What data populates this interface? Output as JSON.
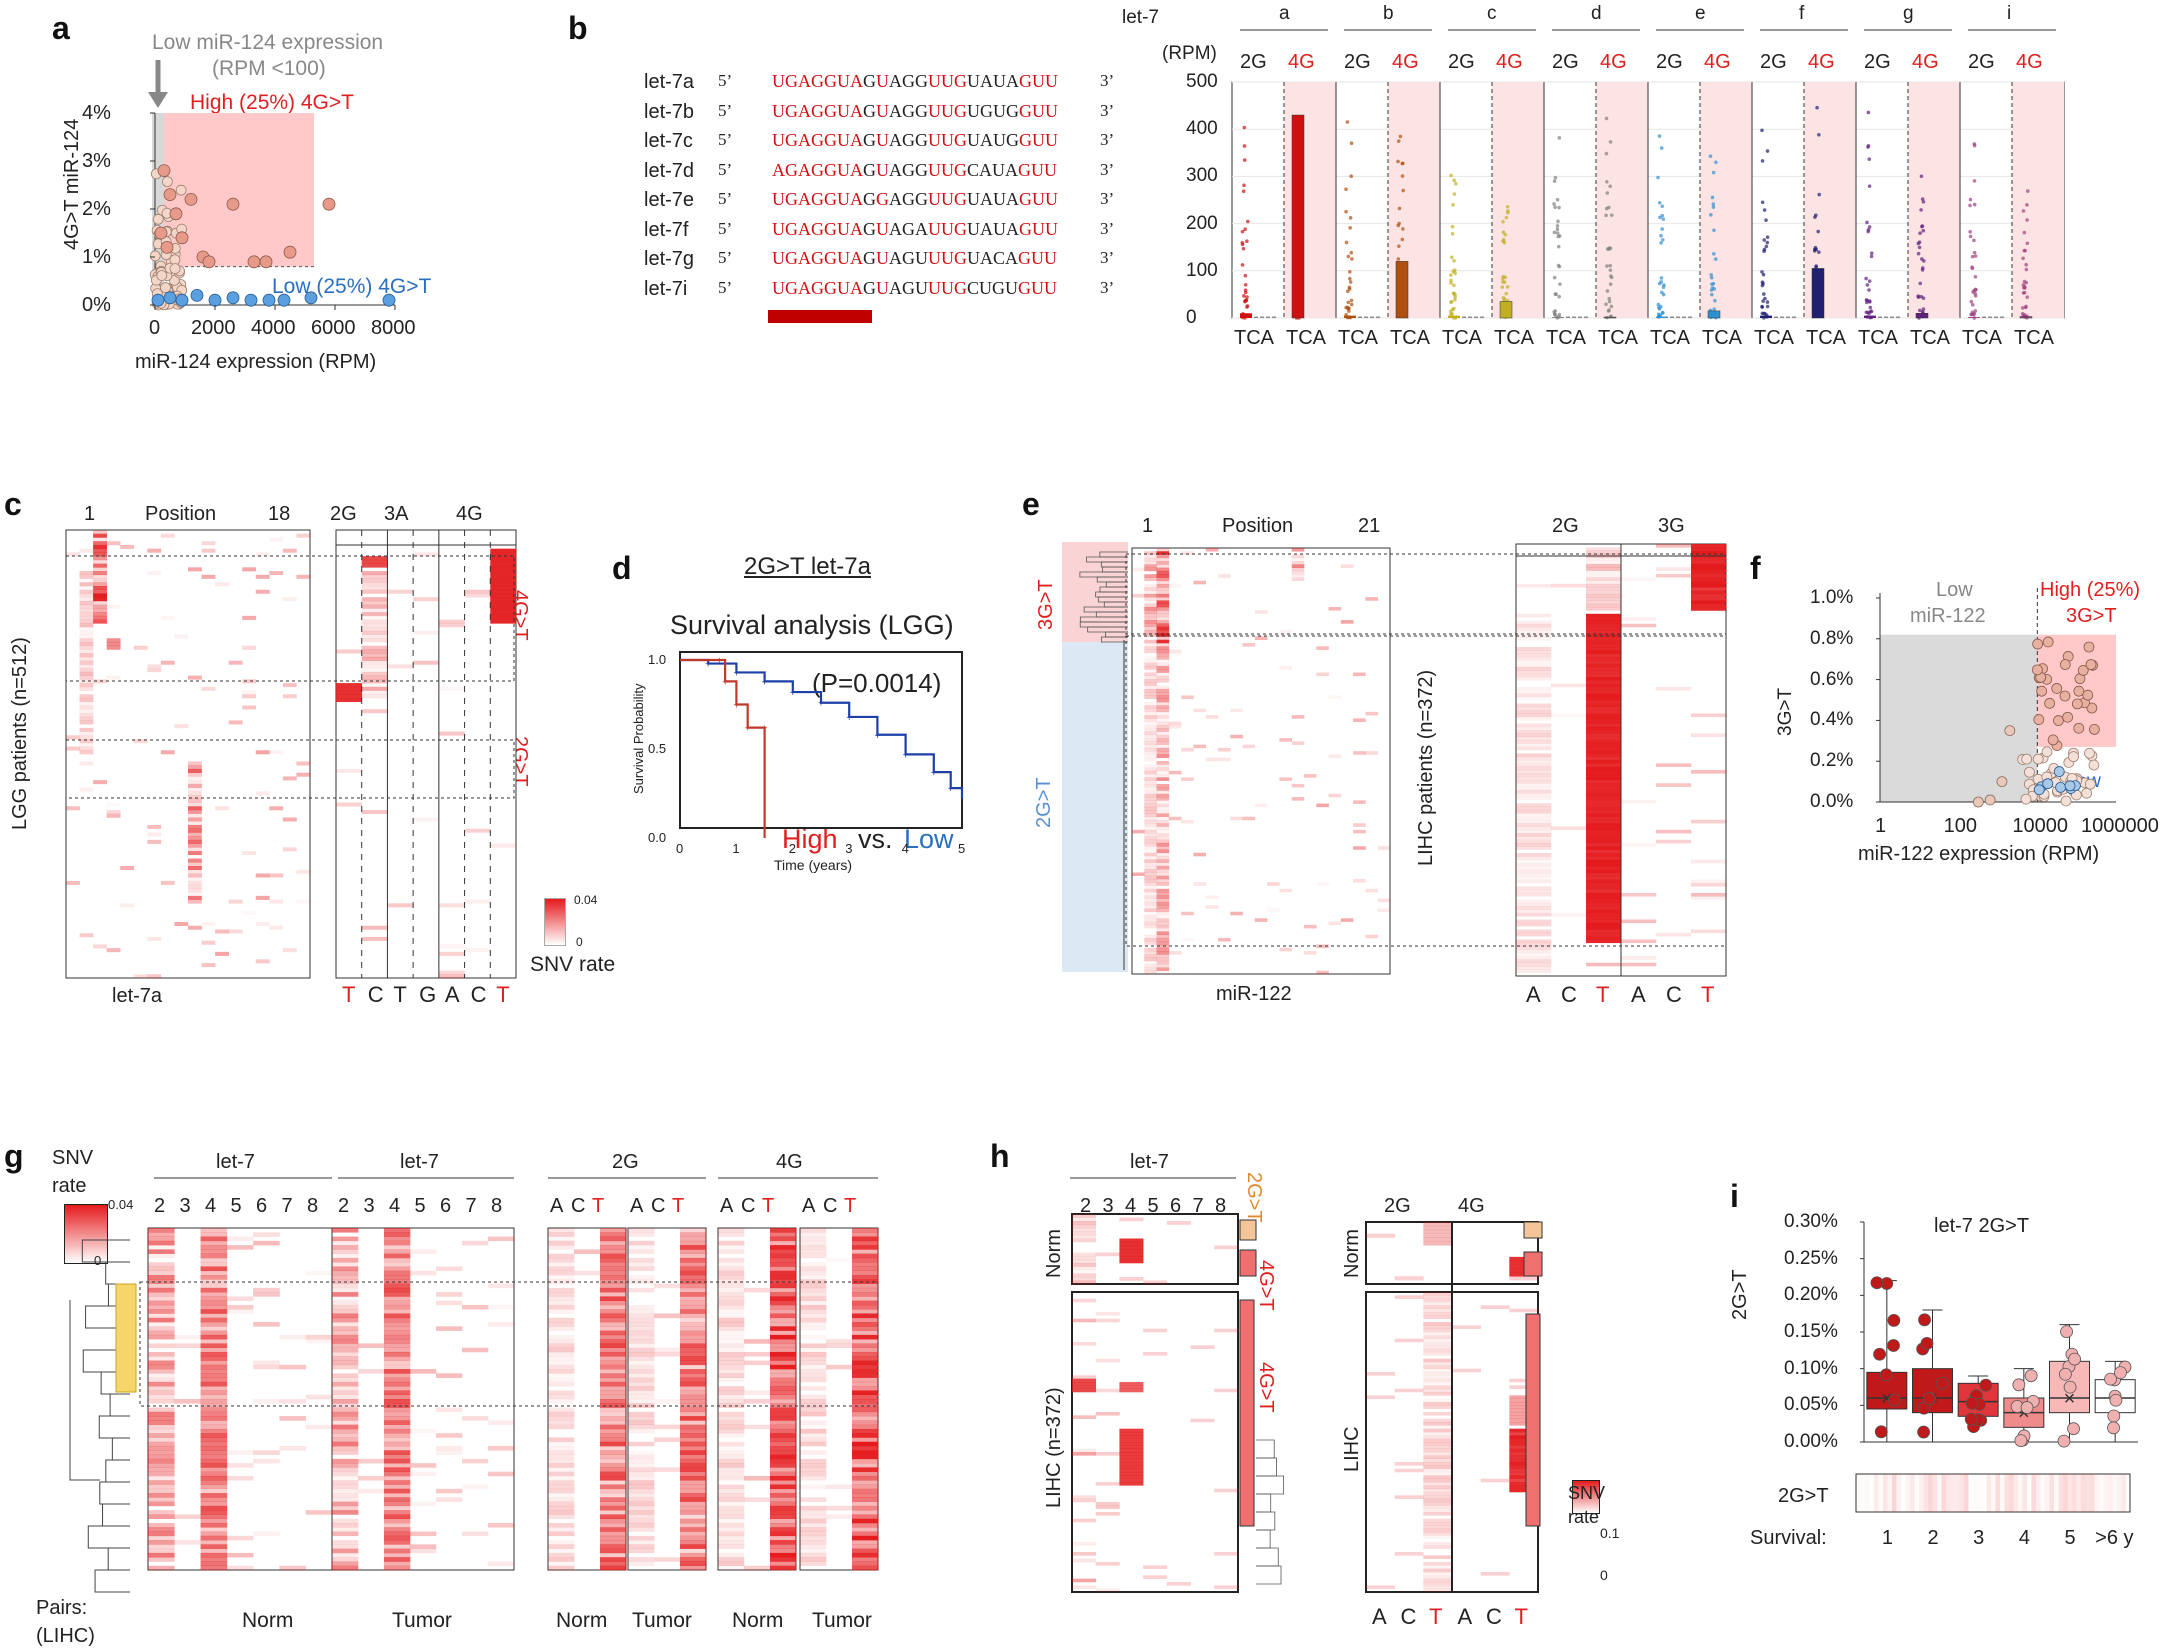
{
  "panel_labels": {
    "a": "a",
    "b": "b",
    "c": "c",
    "d": "d",
    "e": "e",
    "f": "f",
    "g": "g",
    "h": "h",
    "i": "i"
  },
  "colors": {
    "high": "#e02020",
    "low": "#2a6fc0",
    "pink": "#ffc9c9",
    "heat_max": "#e41a1c",
    "gray_region": "#dadada"
  },
  "panel_a": {
    "annotation_low": "Low miR-124 expression",
    "annotation_low_2": "(RPM <100)",
    "annotation_high": "High (25%) 4G>T",
    "annotation_lowgroup": "Low (25%) 4G>T",
    "ylabel": "4G>T miR-124",
    "xlabel": "miR-124 expression (RPM)",
    "yticks": [
      "4%",
      "3%",
      "2%",
      "1%",
      "0%"
    ],
    "xticks": [
      "0",
      "2000",
      "4000",
      "6000",
      "8000"
    ]
  },
  "panel_b": {
    "rows": [
      {
        "name": "let-7a",
        "seq": "UGAGGUAGUAGGUUGUAUAGUU"
      },
      {
        "name": "let-7b",
        "seq": "UGAGGUAGUAGGUUGUGUGGUU"
      },
      {
        "name": "let-7c",
        "seq": "UGAGGUAGUAGGUUGUAUGGUU"
      },
      {
        "name": "let-7d",
        "seq": "AGAGGUAGUAGGUUGCAUAGUU"
      },
      {
        "name": "let-7e",
        "seq": "UGAGGUAGGAGGUUGUAUAGUU"
      },
      {
        "name": "let-7f",
        "seq": "UGAGGUAGUAGAUUGUAUAGUU"
      },
      {
        "name": "let-7g",
        "seq": "UGAGGUAGUAGUUUGUACAGUU"
      },
      {
        "name": "let-7i",
        "seq": "UGAGGUAGUAGUUUGCUGUGUU"
      }
    ],
    "five": "5’",
    "three": "3’",
    "box_title": "let-7",
    "box_unit": "(RPM)",
    "groups": [
      "a",
      "b",
      "c",
      "d",
      "e",
      "f",
      "g",
      "i"
    ],
    "sub": [
      "2G",
      "4G"
    ],
    "tca": "TCA",
    "yticks": [
      "500",
      "400",
      "300",
      "200",
      "100",
      "0"
    ]
  },
  "panel_c": {
    "pos_start": "1",
    "pos_label": "Position",
    "pos_end": "18",
    "cols": [
      "2G",
      "3A",
      "4G"
    ],
    "ylabel": "LGG patients (n=512)",
    "xlabel": "let-7a",
    "bottom_letters": [
      "T",
      "C",
      "T",
      "G",
      "A",
      "C",
      "T"
    ],
    "tag_4g": "4G>T",
    "tag_2g": "2G>T",
    "legend_max": "0.04",
    "legend_min": "0",
    "legend_title": "SNV rate"
  },
  "panel_d": {
    "title": "2G>T let-7a",
    "subtitle": "Survival analysis (LGG)",
    "pvalue": "(P=0.0014)",
    "ylabel": "Survival Probability",
    "xlabel": "Time (years)",
    "high": "High",
    "vs": "vs.",
    "low": "Low",
    "yticks": [
      "1.0",
      "0.5",
      "0.0"
    ],
    "xticks": [
      "0",
      "1",
      "2",
      "3",
      "4",
      "5"
    ]
  },
  "panel_e": {
    "pos_start": "1",
    "pos_label": "Position",
    "pos_end": "21",
    "cols": [
      "2G",
      "3G"
    ],
    "tag_3g": "3G>T",
    "tag_2g": "2G>T",
    "ylabel": "LIHC patients (n=372)",
    "xlabel": "miR-122",
    "bottom_letters": [
      "A",
      "C",
      "T",
      "A",
      "C",
      "T"
    ]
  },
  "panel_f": {
    "ylabel": "3G>T",
    "xlabel": "miR-122 expression (RPM)",
    "yticks": [
      "1.0%",
      "0.8%",
      "0.6%",
      "0.4%",
      "0.2%",
      "0.0%"
    ],
    "xticks": [
      "1",
      "100",
      "10000",
      "1000000"
    ],
    "low_label": "Low",
    "low_label2": "miR-122",
    "high_label": "High (25%)",
    "high_label2": "3G>T",
    "low_tag": "Low"
  },
  "panel_g": {
    "legend_title": "SNV",
    "legend_title2": "rate",
    "legend_max": "0.04",
    "legend_min": "0",
    "let7": "let-7",
    "cols": [
      "2G",
      "4G"
    ],
    "positions": [
      "2",
      "3",
      "4",
      "5",
      "6",
      "7",
      "8"
    ],
    "acgt": [
      "A",
      "C",
      "T"
    ],
    "bottom": [
      "Norm",
      "Tumor",
      "Norm",
      "Tumor",
      "Norm",
      "Tumor"
    ],
    "pairs": "Pairs:",
    "pairs2": "(LIHC)"
  },
  "panel_h": {
    "let7": "let-7",
    "positions": [
      "2",
      "3",
      "4",
      "5",
      "6",
      "7",
      "8"
    ],
    "cols": [
      "2G",
      "4G"
    ],
    "tag_2g": "2G>T",
    "tag_4g": "4G>T",
    "tag_4g2": "4G>T",
    "norm": "Norm",
    "lihc": "LIHC (n=372)",
    "lihc2": "LIHC",
    "bottom_letters": [
      "A",
      "C",
      "T",
      "A",
      "C",
      "T"
    ],
    "legend_title": "SNV",
    "legend_title2": "rate",
    "legend_max": "0.1",
    "legend_min": "0"
  },
  "panel_i": {
    "title": "let-7 2G>T",
    "ylabel": "2G>T",
    "strip_label": "2G>T",
    "survival_label": "Survival:",
    "yticks": [
      "0.30%",
      "0.25%",
      "0.20%",
      "0.15%",
      "0.10%",
      "0.05%",
      "0.00%"
    ],
    "categories": [
      "1",
      "2",
      "3",
      "4",
      "5",
      ">6 y"
    ]
  },
  "chart_data": [
    {
      "type": "scatter",
      "panel": "a",
      "title": "",
      "xlabel": "miR-124 expression (RPM)",
      "ylabel": "4G>T miR-124",
      "xlim": [
        0,
        8000
      ],
      "ylim": [
        0,
        4
      ],
      "series": [
        {
          "name": "High (25%) 4G>T",
          "points": [
            [
              300,
              2.8
            ],
            [
              500,
              2.3
            ],
            [
              700,
              1.9
            ],
            [
              1200,
              2.2
            ],
            [
              1600,
              1.0
            ],
            [
              1800,
              0.9
            ],
            [
              2600,
              2.1
            ],
            [
              3300,
              0.9
            ],
            [
              3700,
              0.9
            ],
            [
              4500,
              1.1
            ],
            [
              5800,
              2.1
            ],
            [
              200,
              1.5
            ],
            [
              400,
              1.2
            ],
            [
              900,
              1.4
            ]
          ]
        },
        {
          "name": "Low (25%) 4G>T",
          "points": [
            [
              100,
              0.1
            ],
            [
              500,
              0.15
            ],
            [
              900,
              0.1
            ],
            [
              1400,
              0.2
            ],
            [
              2000,
              0.1
            ],
            [
              2600,
              0.15
            ],
            [
              3200,
              0.1
            ],
            [
              3800,
              0.1
            ],
            [
              4300,
              0.1
            ],
            [
              5200,
              0.15
            ],
            [
              7800,
              0.1
            ]
          ]
        }
      ]
    },
    {
      "type": "bar",
      "panel": "b",
      "title": "",
      "ylabel": "(RPM)",
      "ylim": [
        0,
        500
      ],
      "categories": [
        "a",
        "b",
        "c",
        "d",
        "e",
        "f",
        "g",
        "i"
      ],
      "series": [
        {
          "name": "2G",
          "values": [
            10,
            5,
            5,
            2,
            3,
            5,
            5,
            2
          ]
        },
        {
          "name": "4G",
          "values": [
            430,
            120,
            35,
            2,
            15,
            105,
            10,
            3
          ]
        }
      ]
    },
    {
      "type": "line",
      "panel": "d",
      "title": "Survival analysis (LGG)",
      "xlabel": "Time (years)",
      "ylabel": "Survival Probability",
      "xlim": [
        0,
        5
      ],
      "ylim": [
        0,
        1
      ],
      "series": [
        {
          "name": "High",
          "x": [
            0,
            0.7,
            0.8,
            1.0,
            1.2,
            1.5,
            1.5
          ],
          "y": [
            1.0,
            1.0,
            0.88,
            0.75,
            0.62,
            0.62,
            0.0
          ]
        },
        {
          "name": "Low",
          "x": [
            0,
            0.5,
            1,
            1.5,
            2,
            2.5,
            3,
            3.5,
            4,
            4.5,
            4.8,
            5
          ],
          "y": [
            1.0,
            0.98,
            0.93,
            0.88,
            0.82,
            0.76,
            0.68,
            0.58,
            0.47,
            0.37,
            0.28,
            0.22
          ]
        }
      ]
    },
    {
      "type": "scatter",
      "panel": "f",
      "title": "",
      "xlabel": "miR-122 expression (RPM)",
      "ylabel": "3G>T",
      "ylim": [
        0,
        1.0
      ],
      "series": [
        {
          "name": "High (25%) 3G>T",
          "points": [
            [
              20000,
              0.78
            ],
            [
              30000,
              0.72
            ],
            [
              40000,
              0.5
            ],
            [
              60000,
              0.48
            ],
            [
              15000,
              0.38
            ],
            [
              80000,
              0.35
            ],
            [
              25000,
              0.45
            ]
          ]
        }
      ]
    },
    {
      "type": "bar",
      "panel": "i",
      "title": "let-7 2G>T",
      "ylabel": "2G>T",
      "ylim": [
        0,
        0.3
      ],
      "categories": [
        "1",
        "2",
        "3",
        "4",
        "5",
        ">6 y"
      ],
      "values": [
        0.06,
        0.06,
        0.055,
        0.04,
        0.06,
        0.06
      ]
    }
  ]
}
